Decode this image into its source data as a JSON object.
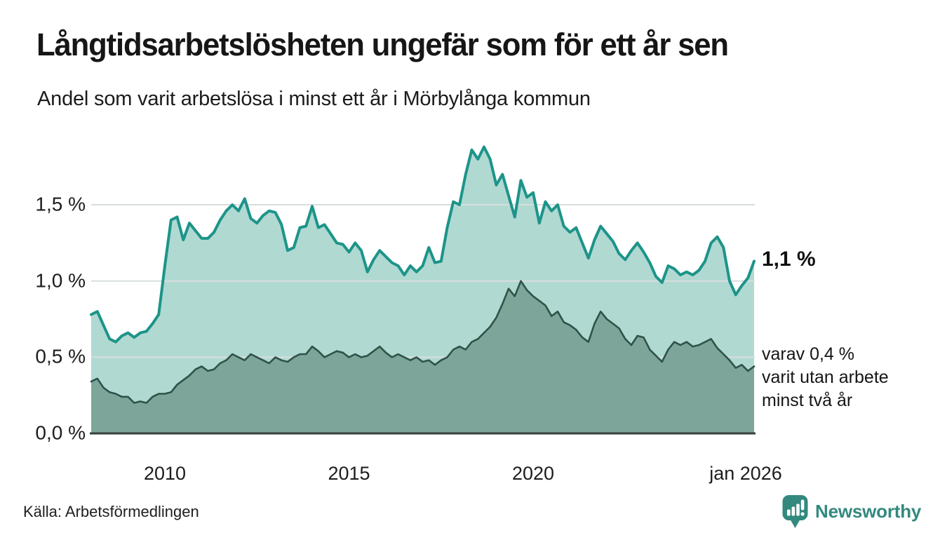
{
  "chart_data": {
    "type": "area",
    "title": "Långtidsarbetslösheten ungefär som för ett år sen",
    "subtitle": "Andel som varit arbetslösa i minst ett år i Mörbylånga kommun",
    "x_start": 2008.0,
    "x_end": 2026.0,
    "x_end_note": "jan 2026",
    "ylim": [
      0,
      1.95
    ],
    "grid": true,
    "legend_position": "none",
    "grid_color": "#d8dede",
    "axis_color": "#36403d",
    "yticks": [
      {
        "value": 0.0,
        "label": "0,0 %"
      },
      {
        "value": 0.5,
        "label": "0,5 %"
      },
      {
        "value": 1.0,
        "label": "1,0 %"
      },
      {
        "value": 1.5,
        "label": "1,5 %"
      }
    ],
    "xticks": [
      {
        "value": 2010,
        "label": "2010"
      },
      {
        "value": 2015,
        "label": "2015"
      },
      {
        "value": 2020,
        "label": "2020"
      },
      {
        "value": 2026,
        "label": "jan 2026"
      }
    ],
    "series": [
      {
        "name": "Arbetslösa minst ett år",
        "line_color": "#1d9489",
        "fill_color": "#b0d9d2",
        "line_width": 4,
        "end_value_pct": 1.1,
        "values": [
          0.78,
          0.8,
          0.71,
          0.62,
          0.6,
          0.64,
          0.66,
          0.63,
          0.66,
          0.67,
          0.72,
          0.78,
          1.1,
          1.4,
          1.42,
          1.27,
          1.38,
          1.33,
          1.28,
          1.28,
          1.32,
          1.4,
          1.46,
          1.5,
          1.46,
          1.54,
          1.41,
          1.38,
          1.43,
          1.46,
          1.45,
          1.37,
          1.2,
          1.22,
          1.35,
          1.36,
          1.49,
          1.35,
          1.37,
          1.31,
          1.25,
          1.24,
          1.19,
          1.25,
          1.2,
          1.06,
          1.14,
          1.2,
          1.16,
          1.12,
          1.1,
          1.04,
          1.1,
          1.06,
          1.1,
          1.22,
          1.12,
          1.13,
          1.35,
          1.52,
          1.5,
          1.7,
          1.86,
          1.8,
          1.88,
          1.8,
          1.63,
          1.7,
          1.56,
          1.42,
          1.66,
          1.55,
          1.58,
          1.38,
          1.52,
          1.46,
          1.5,
          1.36,
          1.32,
          1.35,
          1.25,
          1.15,
          1.27,
          1.36,
          1.31,
          1.26,
          1.18,
          1.14,
          1.2,
          1.25,
          1.19,
          1.12,
          1.03,
          0.99,
          1.1,
          1.08,
          1.04,
          1.06,
          1.04,
          1.07,
          1.13,
          1.25,
          1.29,
          1.22,
          1.0,
          0.91,
          0.97,
          1.02,
          1.13
        ]
      },
      {
        "name": "Arbetslösa minst två år",
        "line_color": "#2f5348",
        "fill_color": "#7ea59a",
        "line_width": 2.6,
        "end_value_pct": 0.4,
        "values": [
          0.34,
          0.36,
          0.3,
          0.27,
          0.26,
          0.24,
          0.24,
          0.2,
          0.21,
          0.2,
          0.24,
          0.26,
          0.26,
          0.27,
          0.32,
          0.35,
          0.38,
          0.42,
          0.44,
          0.41,
          0.42,
          0.46,
          0.48,
          0.52,
          0.5,
          0.48,
          0.52,
          0.5,
          0.48,
          0.46,
          0.5,
          0.48,
          0.47,
          0.5,
          0.52,
          0.52,
          0.57,
          0.54,
          0.5,
          0.52,
          0.54,
          0.53,
          0.5,
          0.52,
          0.5,
          0.51,
          0.54,
          0.57,
          0.53,
          0.5,
          0.52,
          0.5,
          0.48,
          0.5,
          0.47,
          0.48,
          0.45,
          0.48,
          0.5,
          0.55,
          0.57,
          0.55,
          0.6,
          0.62,
          0.66,
          0.7,
          0.76,
          0.85,
          0.95,
          0.9,
          1.0,
          0.94,
          0.9,
          0.87,
          0.84,
          0.77,
          0.8,
          0.73,
          0.71,
          0.68,
          0.63,
          0.6,
          0.72,
          0.8,
          0.75,
          0.72,
          0.69,
          0.62,
          0.58,
          0.64,
          0.63,
          0.55,
          0.51,
          0.47,
          0.55,
          0.6,
          0.58,
          0.6,
          0.57,
          0.58,
          0.6,
          0.62,
          0.56,
          0.52,
          0.48,
          0.43,
          0.45,
          0.41,
          0.44
        ]
      }
    ],
    "annotations": {
      "end_value_label": "1,1 %",
      "sub_label_lines": [
        "varav 0,4 %",
        "varit utan arbete",
        "minst två år"
      ]
    }
  },
  "footer": {
    "source": "Källa: Arbetsförmedlingen",
    "logo_text": "Newsworthy",
    "logo_color": "#33897e"
  }
}
